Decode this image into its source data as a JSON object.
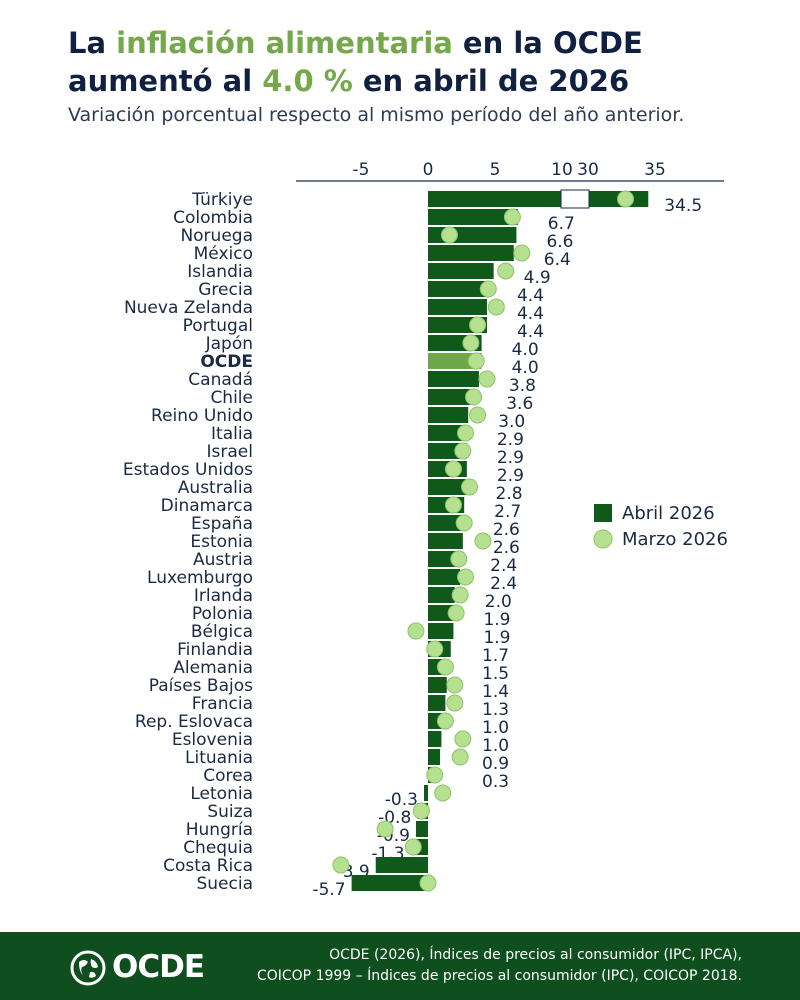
{
  "header": {
    "title_p1": "La ",
    "title_hl1": "inflación alimentaria",
    "title_p2": " en la OCDE aumentó al ",
    "title_hl2": "4.0 %",
    "title_p3": " en abril de  2026",
    "subtitle": "Variación porcentual respecto al mismo período del año anterior."
  },
  "chart_data": {
    "type": "bar",
    "orientation": "horizontal",
    "axis_break": [
      10,
      30
    ],
    "xticks": [
      "-5",
      "0",
      "5",
      "10",
      "30",
      "35"
    ],
    "categories": [
      "Türkiye",
      "Colombia",
      "Noruega",
      "México",
      "Islandia",
      "Grecia",
      "Nueva Zelanda",
      "Portugal",
      "Japón",
      "OCDE",
      "Canadá",
      "Chile",
      "Reino Unido",
      "Italia",
      "Israel",
      "Estados Unidos",
      "Australia",
      "Dinamarca",
      "España",
      "Estonia",
      "Austria",
      "Luxemburgo",
      "Irlanda",
      "Polonia",
      "Bélgica",
      "Finlandia",
      "Alemania",
      "Países Bajos",
      "Francia",
      "Rep. Eslovaca",
      "Eslovenia",
      "Lituania",
      "Corea",
      "Letonia",
      "Suiza",
      "Hungría",
      "Chequia",
      "Costa Rica",
      "Suecia"
    ],
    "labels": [
      "34.5",
      "6.7",
      "6.6",
      "6.4",
      "4.9",
      "4.4",
      "4.4",
      "4.4",
      "4.0",
      "4.0",
      "3.8",
      "3.6",
      "3.0",
      "2.9",
      "2.9",
      "2.9",
      "2.8",
      "2.7",
      "2.6",
      "2.6",
      "2.4",
      "2.4",
      "2.0",
      "1.9",
      "1.9",
      "1.7",
      "1.5",
      "1.4",
      "1.3",
      "1.0",
      "1.0",
      "0.9",
      "0.3",
      "-0.3",
      "-0.8",
      "-0.9",
      "-1.3",
      "-3.9",
      "-5.7"
    ],
    "highlight": "OCDE",
    "series": [
      {
        "name": "Abril 2026",
        "color": "#0f5a1a",
        "highlight_color": "#6fa84a",
        "values": [
          34.5,
          6.7,
          6.6,
          6.4,
          4.9,
          4.4,
          4.4,
          4.4,
          4.0,
          4.0,
          3.8,
          3.6,
          3.0,
          2.9,
          2.9,
          2.9,
          2.8,
          2.7,
          2.6,
          2.6,
          2.4,
          2.4,
          2.0,
          1.9,
          1.9,
          1.7,
          1.5,
          1.4,
          1.3,
          1.0,
          1.0,
          0.9,
          0.3,
          -0.3,
          -0.8,
          -0.9,
          -1.3,
          -3.9,
          -5.7
        ]
      },
      {
        "name": "Marzo 2026",
        "color": "#b4e090",
        "values": [
          32.8,
          6.3,
          1.6,
          7.0,
          5.8,
          4.5,
          5.1,
          3.7,
          3.2,
          3.6,
          4.4,
          3.4,
          3.7,
          2.8,
          2.6,
          1.9,
          3.1,
          1.9,
          2.7,
          4.1,
          2.3,
          2.8,
          2.4,
          2.1,
          -0.9,
          0.5,
          1.3,
          2.0,
          2.0,
          1.3,
          2.6,
          2.4,
          0.5,
          1.1,
          -0.5,
          -3.2,
          -1.1,
          -6.5,
          0.0
        ]
      }
    ],
    "legend_position": "right",
    "grid": false
  },
  "footer": {
    "logo_text": "OCDE",
    "source_line1": "OCDE (2026), Índices de precios al consumidor (IPC, IPCA),",
    "source_line2": "COICOP 1999 – Índices de precios al consumidor (IPC), COICOP 2018."
  }
}
